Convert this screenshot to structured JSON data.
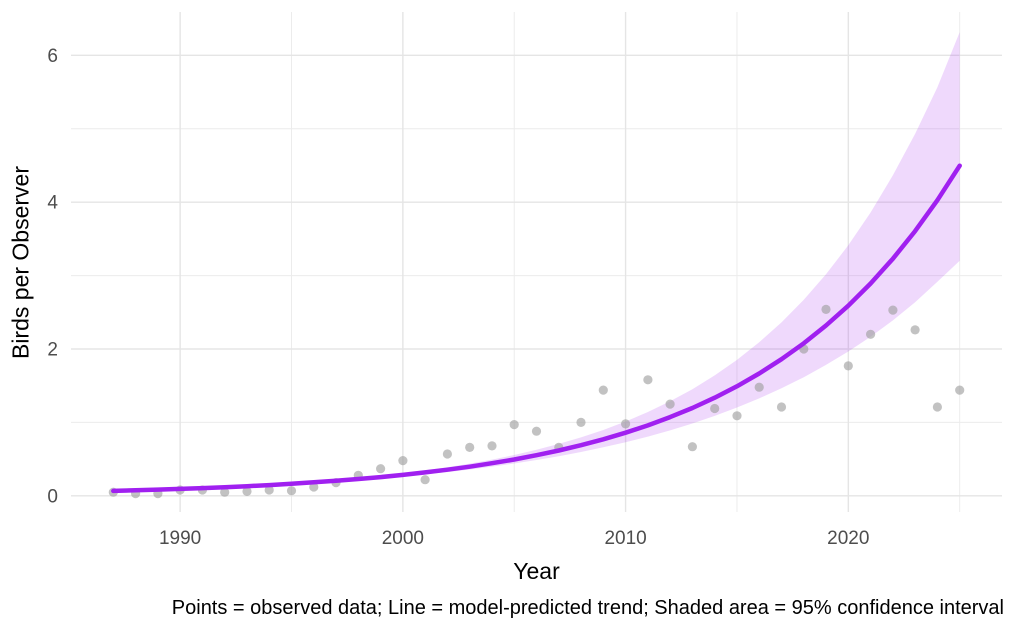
{
  "chart_data": {
    "type": "scatter",
    "title": "",
    "xlabel": "Year",
    "ylabel": "Birds per Observer",
    "caption": "Points = observed data; Line = model-predicted trend; Shaded area = 95% confidence interval",
    "legend": "none",
    "grid": true,
    "xlim": [
      1985.1,
      2026.9
    ],
    "ylim": [
      -0.22,
      6.59
    ],
    "x_major_ticks": [
      1990,
      2000,
      2010,
      2020
    ],
    "x_minor_ticks": [
      1995,
      2005,
      2015,
      2025
    ],
    "y_major_ticks": [
      0,
      2,
      4,
      6
    ],
    "y_minor_ticks": [
      1,
      3,
      5
    ],
    "years": [
      1987,
      1988,
      1989,
      1990,
      1991,
      1992,
      1993,
      1994,
      1995,
      1996,
      1997,
      1998,
      1999,
      2000,
      2001,
      2002,
      2003,
      2004,
      2005,
      2006,
      2007,
      2008,
      2009,
      2010,
      2011,
      2012,
      2013,
      2014,
      2015,
      2016,
      2017,
      2018,
      2019,
      2020,
      2021,
      2022,
      2023,
      2024,
      2025
    ],
    "observed": [
      0.05,
      0.03,
      0.03,
      0.08,
      0.08,
      0.05,
      0.06,
      0.08,
      0.07,
      0.12,
      0.18,
      0.28,
      0.37,
      0.48,
      0.22,
      0.57,
      0.66,
      0.68,
      0.97,
      0.88,
      0.66,
      1.0,
      1.44,
      0.98,
      1.58,
      1.25,
      0.67,
      1.19,
      1.09,
      1.48,
      1.21,
      2.0,
      2.54,
      1.77,
      2.2,
      2.53,
      2.26,
      1.21,
      1.44
    ],
    "trend": [
      0.068,
      0.076,
      0.085,
      0.095,
      0.106,
      0.118,
      0.132,
      0.147,
      0.164,
      0.184,
      0.205,
      0.229,
      0.256,
      0.285,
      0.319,
      0.356,
      0.397,
      0.444,
      0.495,
      0.553,
      0.618,
      0.69,
      0.77,
      0.86,
      0.96,
      1.072,
      1.197,
      1.337,
      1.492,
      1.666,
      1.861,
      2.078,
      2.32,
      2.59,
      2.892,
      3.23,
      3.606,
      4.027,
      4.496
    ],
    "ci_lower": [
      0.067,
      0.074,
      0.083,
      0.092,
      0.103,
      0.114,
      0.127,
      0.141,
      0.157,
      0.174,
      0.193,
      0.215,
      0.238,
      0.264,
      0.293,
      0.324,
      0.359,
      0.398,
      0.441,
      0.488,
      0.54,
      0.597,
      0.661,
      0.73,
      0.807,
      0.892,
      0.986,
      1.089,
      1.203,
      1.327,
      1.466,
      1.616,
      1.784,
      1.966,
      2.168,
      2.389,
      2.638,
      2.915,
      3.201
    ],
    "ci_upper": [
      0.069,
      0.078,
      0.087,
      0.097,
      0.109,
      0.122,
      0.137,
      0.153,
      0.172,
      0.193,
      0.217,
      0.244,
      0.274,
      0.308,
      0.347,
      0.39,
      0.439,
      0.494,
      0.557,
      0.627,
      0.707,
      0.796,
      0.897,
      1.012,
      1.142,
      1.288,
      1.453,
      1.641,
      1.852,
      2.093,
      2.362,
      2.671,
      3.017,
      3.412,
      3.859,
      4.366,
      4.93,
      5.564,
      6.316
    ],
    "colors": {
      "point": "#9c9c9c",
      "point_opacity": 0.62,
      "trend_line": "#A020F0",
      "band_fill": "#A020F0",
      "band_opacity": 0.17,
      "grid_major": "#e5e5e5",
      "grid_minor": "#ececec",
      "tick_label": "#4d4d4d",
      "background": "#ffffff"
    },
    "style": {
      "point_radius": 4.6,
      "line_width": 4.5,
      "tick_font_size": 19
    }
  }
}
